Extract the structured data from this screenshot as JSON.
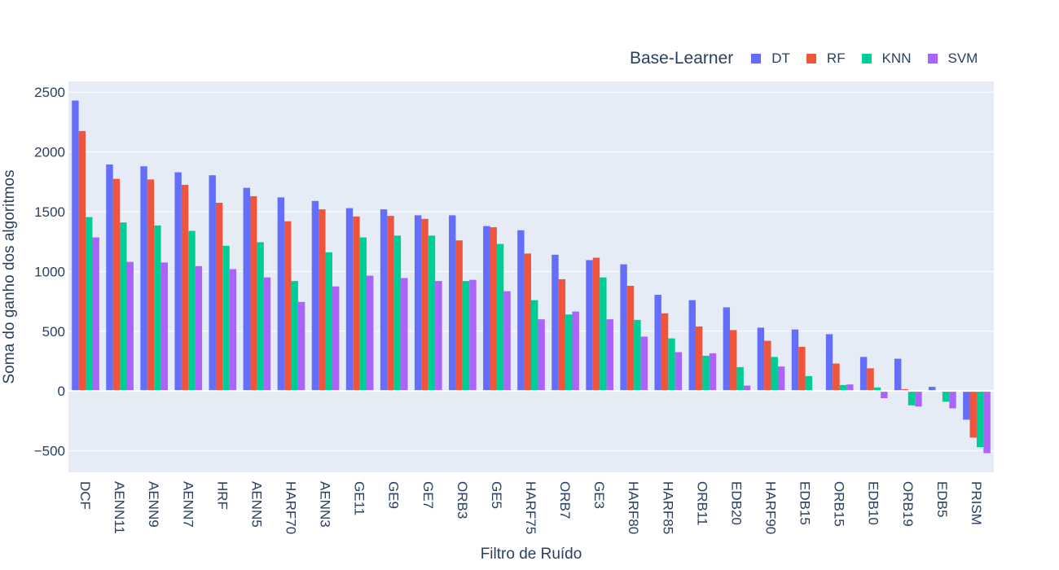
{
  "chart_data": {
    "type": "bar",
    "xlabel": "Filtro de Ruído",
    "ylabel": "Soma do ganho dos algoritmos",
    "ylim": [
      -680,
      2590
    ],
    "yticks": [
      2500,
      2000,
      1500,
      1000,
      500,
      0,
      -500
    ],
    "ytick_labels": [
      "2500",
      "2000",
      "1500",
      "1000",
      "500",
      "0",
      "−500"
    ],
    "grid": true,
    "legend_title": "Base-Learner",
    "legend_position": "top-right",
    "categories": [
      "DCF",
      "AENN11",
      "AENN9",
      "AENN7",
      "HRF",
      "AENN5",
      "HARF70",
      "AENN3",
      "GE11",
      "GE9",
      "GE7",
      "ORB3",
      "GE5",
      "HARF75",
      "ORB7",
      "GE3",
      "HARF80",
      "HARF85",
      "ORB11",
      "EDB20",
      "HARF90",
      "EDB15",
      "ORB15",
      "EDB10",
      "ORB19",
      "EDB5",
      "PRISM"
    ],
    "series": [
      {
        "name": "DT",
        "color": "#636efa",
        "values": [
          2430,
          1895,
          1880,
          1830,
          1805,
          1700,
          1620,
          1590,
          1530,
          1520,
          1470,
          1470,
          1380,
          1345,
          1140,
          1095,
          1060,
          805,
          760,
          700,
          530,
          515,
          475,
          285,
          270,
          35,
          -240
        ]
      },
      {
        "name": "RF",
        "color": "#ef553b",
        "values": [
          2175,
          1775,
          1770,
          1725,
          1575,
          1630,
          1420,
          1520,
          1460,
          1465,
          1440,
          1260,
          1370,
          1150,
          935,
          1115,
          880,
          650,
          540,
          510,
          420,
          370,
          230,
          190,
          15,
          0,
          -390
        ]
      },
      {
        "name": "KNN",
        "color": "#00cc96",
        "values": [
          1455,
          1410,
          1385,
          1340,
          1215,
          1245,
          920,
          1160,
          1285,
          1300,
          1300,
          920,
          1230,
          760,
          640,
          950,
          595,
          440,
          295,
          200,
          285,
          125,
          50,
          30,
          -120,
          -90,
          -470
        ]
      },
      {
        "name": "SVM",
        "color": "#ab63fa",
        "values": [
          1285,
          1080,
          1075,
          1045,
          1020,
          950,
          745,
          875,
          965,
          945,
          920,
          930,
          835,
          600,
          665,
          600,
          455,
          325,
          315,
          45,
          205,
          0,
          55,
          -60,
          -130,
          -145,
          -520
        ]
      }
    ]
  }
}
